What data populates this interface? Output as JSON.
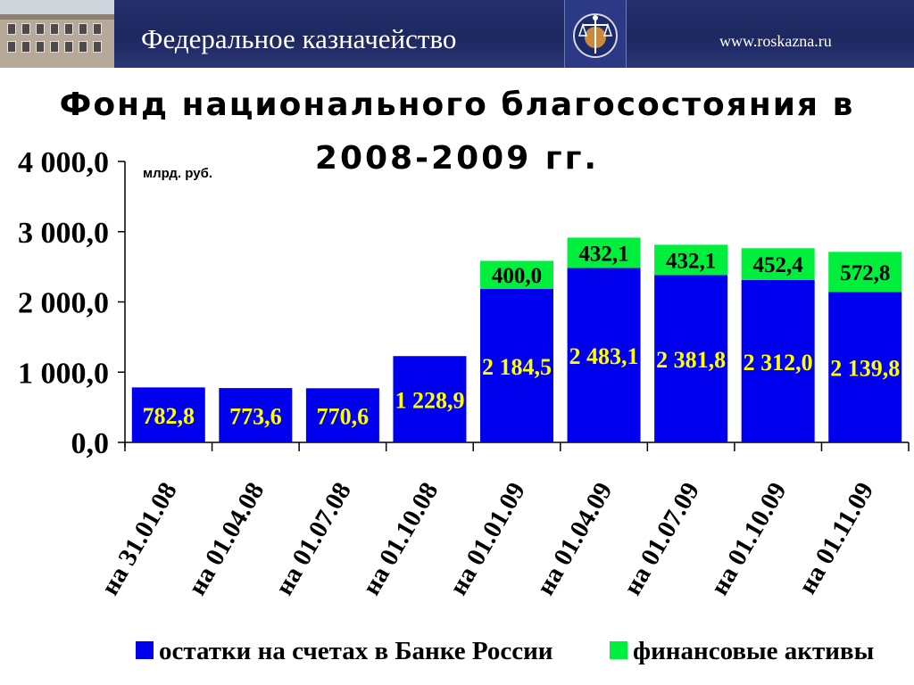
{
  "header": {
    "org_name": "Федеральное казначейство",
    "url": "www.roskazna.ru",
    "logo_icon": "treasury-emblem-icon",
    "photo": "building-photo"
  },
  "chart_data": {
    "type": "bar",
    "stacked": true,
    "title": "Фонд национального благосостояния  в 2008-2009  гг.",
    "title_lines": [
      "Фонд национального благосостояния  в",
      "2008-2009  гг."
    ],
    "unit_label": "млрд. руб.",
    "categories": [
      "на 31.01.08",
      "на 01.04.08",
      "на 01.07.08",
      "на 01.10.08",
      "на 01.01.09",
      "на 01.04.09",
      "на 01.07.09",
      "на 01.10.09",
      "на 01.11.09"
    ],
    "series": [
      {
        "name": "остатки на счетах в Банке России",
        "color": "#0000ee",
        "label_color": "#ffff00",
        "values": [
          782.8,
          773.6,
          770.6,
          1228.9,
          2184.5,
          2483.1,
          2381.8,
          2312.0,
          2139.8
        ],
        "labels": [
          "782,8",
          "773,6",
          "770,6",
          "1 228,9",
          "2 184,5",
          "2 483,1",
          "2 381,8",
          "2 312,0",
          "2 139,8"
        ]
      },
      {
        "name": "финансовые активы",
        "color": "#00ee3c",
        "label_color": "#000000",
        "values": [
          0,
          0,
          0,
          0,
          400.0,
          432.1,
          432.1,
          452.4,
          572.8
        ],
        "labels": [
          "",
          "",
          "",
          "",
          "400,0",
          "432,1",
          "432,1",
          "452,4",
          "572,8"
        ]
      }
    ],
    "ylim": [
      0,
      4000
    ],
    "yticks": [
      0,
      1000,
      2000,
      3000,
      4000
    ],
    "ytick_labels": [
      "0,0",
      "1 000,0",
      "2 000,0",
      "3 000,0",
      "4 000,0"
    ],
    "grid": false,
    "legend_position": "bottom"
  }
}
